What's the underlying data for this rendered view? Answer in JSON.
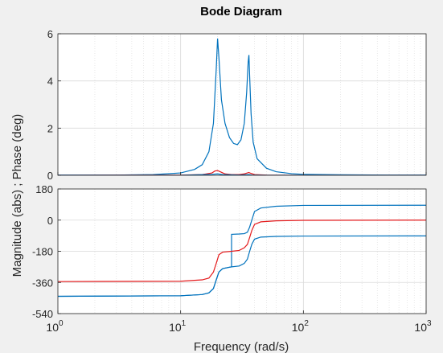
{
  "chart_data": {
    "type": "line",
    "title": "Bode Diagram",
    "xlabel": "Frequency  (rad/s)",
    "ylabel": "Magnitude (abs) ; Phase (deg)",
    "x_scale": "log",
    "xlim": [
      1,
      1000
    ],
    "x_tick_labels": [
      {
        "base": "10",
        "exp": "0",
        "value": 1
      },
      {
        "base": "10",
        "exp": "1",
        "value": 10
      },
      {
        "base": "10",
        "exp": "2",
        "value": 100
      },
      {
        "base": "10",
        "exp": "3",
        "value": 1000
      }
    ],
    "grid": true,
    "colors": {
      "series_blue": "#0072bd",
      "series_red": "#e41a1c",
      "axes_bg": "#ffffff",
      "figure_bg": "#f0f0f0",
      "grid": "#d9d9d9",
      "axis": "#262626"
    },
    "panels": [
      {
        "name": "magnitude",
        "ylim": [
          0,
          6
        ],
        "yticks": [
          0,
          2,
          4,
          6
        ],
        "series": [
          {
            "color": "#0072bd",
            "x": [
              1,
              3,
              6,
              10,
              13,
              15,
              17,
              18.5,
              19.5,
              20,
              20.5,
              21.5,
              23,
              25,
              27,
              29,
              31,
              33,
              34.5,
              35.5,
              36,
              36.5,
              37.5,
              39,
              42,
              50,
              60,
              80,
              100,
              200,
              500,
              1000
            ],
            "y": [
              0.01,
              0.01,
              0.03,
              0.1,
              0.25,
              0.45,
              1.0,
              2.2,
              4.5,
              5.8,
              5.0,
              3.2,
              2.2,
              1.6,
              1.35,
              1.3,
              1.5,
              2.2,
              3.5,
              4.8,
              5.1,
              4.2,
              2.6,
              1.4,
              0.7,
              0.3,
              0.15,
              0.07,
              0.04,
              0.02,
              0.01,
              0.01
            ]
          },
          {
            "color": "#e41a1c",
            "x": [
              1,
              10,
              15,
              18,
              19,
              20,
              21,
              23,
              26,
              30,
              33,
              35,
              36,
              37,
              40,
              50,
              100,
              1000
            ],
            "y": [
              0.0,
              0.01,
              0.03,
              0.1,
              0.18,
              0.2,
              0.15,
              0.06,
              0.03,
              0.03,
              0.06,
              0.1,
              0.12,
              0.09,
              0.03,
              0.01,
              0.0,
              0.0
            ]
          },
          {
            "color": "#0072bd",
            "x": [
              1,
              10,
              18,
              20,
              22,
              30,
              36,
              38,
              50,
              1000
            ],
            "y": [
              0.0,
              0.0,
              0.04,
              0.06,
              0.03,
              0.01,
              0.03,
              0.01,
              0.0,
              0.0
            ]
          }
        ]
      },
      {
        "name": "phase",
        "ylim": [
          -540,
          180
        ],
        "yticks": [
          -540,
          -360,
          -180,
          0,
          180
        ],
        "series": [
          {
            "color": "#0072bd",
            "x": [
              1,
              10,
              15,
              17,
              18.5,
              19.5,
              20.5,
              22,
              25,
              26,
              26,
              30,
              33,
              35,
              36.5,
              38,
              40,
              45,
              60,
              100,
              1000
            ],
            "y": [
              -440,
              -437,
              -430,
              -420,
              -395,
              -345,
              -300,
              -280,
              -272,
              -270,
              -82,
              -80,
              -78,
              -70,
              -40,
              0,
              50,
              70,
              80,
              85,
              86
            ]
          },
          {
            "color": "#e41a1c",
            "x": [
              1,
              10,
              15,
              17,
              18.5,
              19.5,
              20.5,
              22,
              26,
              30,
              33,
              35,
              36.5,
              38,
              40,
              45,
              60,
              100,
              1000
            ],
            "y": [
              -355,
              -353,
              -345,
              -335,
              -300,
              -250,
              -200,
              -185,
              -180,
              -175,
              -160,
              -140,
              -100,
              -60,
              -25,
              -10,
              -4,
              -1,
              0
            ]
          },
          {
            "color": "#0072bd",
            "x": [
              1,
              10,
              15,
              17,
              18.5,
              19.5,
              20.5,
              22,
              25,
              26,
              30,
              33,
              35,
              36.5,
              38,
              40,
              45,
              60,
              100,
              1000
            ],
            "y": [
              -440,
              -437,
              -430,
              -420,
              -395,
              -345,
              -300,
              -280,
              -272,
              -270,
              -265,
              -250,
              -225,
              -180,
              -140,
              -110,
              -98,
              -94,
              -92,
              -91
            ]
          }
        ]
      }
    ]
  }
}
